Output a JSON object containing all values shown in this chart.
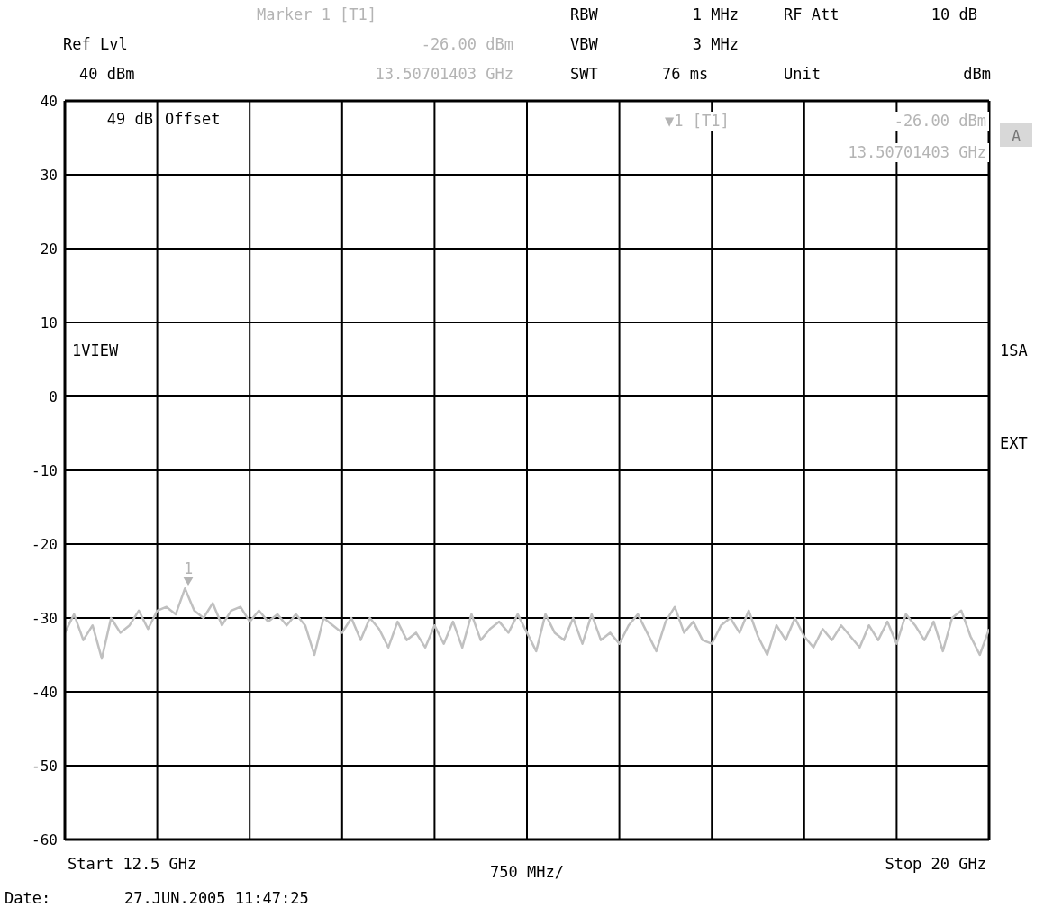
{
  "chart_data": {
    "type": "line",
    "xlabel": "750 MHz/",
    "categories": [
      null,
      null,
      null,
      null,
      null,
      null,
      null,
      null,
      null,
      null,
      null,
      null,
      null,
      null,
      null,
      null,
      null,
      null,
      null,
      null,
      null,
      null,
      null,
      null,
      null,
      null,
      null,
      null,
      null,
      null,
      null,
      null,
      null,
      null,
      null,
      null,
      null,
      null,
      null,
      null,
      null,
      null,
      null,
      null,
      null,
      null,
      null,
      null,
      null,
      null,
      null,
      null,
      null,
      null,
      null,
      null,
      null,
      null,
      null,
      null,
      null,
      null,
      null,
      null,
      null,
      null,
      null,
      null,
      null,
      null,
      null,
      null,
      null,
      null,
      null,
      null,
      null,
      null,
      null,
      null,
      null,
      null,
      null,
      null,
      null,
      null,
      null,
      null,
      null,
      null,
      null,
      null,
      null,
      null,
      null,
      null,
      null,
      null,
      null,
      null,
      null
    ],
    "series": [
      {
        "color": "#c0c0c0",
        "values": [
          -32,
          -29.5,
          -33,
          -31,
          -35.5,
          -30,
          -32,
          -31,
          -29,
          -31.5,
          -29,
          -28.5,
          -29.5,
          -26,
          -29,
          -30,
          -28,
          -31,
          -29,
          -28.5,
          -30.5,
          -29,
          -30.5,
          -29.5,
          -31,
          -29.5,
          -31,
          -35,
          -30,
          -31,
          -32,
          -30,
          -33,
          -30,
          -31.5,
          -34,
          -30.5,
          -33,
          -32,
          -34,
          -31,
          -33.5,
          -30.5,
          -34,
          -29.5,
          -33,
          -31.5,
          -30.5,
          -32,
          -29.5,
          -32,
          -34.5,
          -29.5,
          -32,
          -33,
          -30,
          -33.5,
          -29.5,
          -33,
          -32,
          -33.5,
          -31,
          -29.5,
          -32,
          -34.5,
          -30.5,
          -28.5,
          -32,
          -30.5,
          -33,
          -33.5,
          -31,
          -30,
          -32,
          -29,
          -32.5,
          -35,
          -31,
          -33,
          -30,
          -32.5,
          -34,
          -31.5,
          -33,
          -31,
          -32.5,
          -34,
          -31,
          -33,
          -30.5,
          -33.5,
          -29.5,
          -31,
          -33,
          -30.5,
          -34.5,
          -30,
          -29,
          -32.5,
          -35,
          -31.5
        ]
      }
    ],
    "ylim": [
      -60,
      40
    ],
    "yticks": [
      -60,
      -50,
      -40,
      -30,
      -20,
      -10,
      0,
      10,
      20,
      30,
      40
    ],
    "grid": true,
    "marker": "none",
    "annotations": [
      "Marker 1 [T1]",
      "Ref Lvl",
      "40 dBm",
      "-26.00 dBm",
      "13.50701403 GHz",
      "RBW",
      "1 MHz",
      "RF Att",
      "10 dB",
      "VBW",
      "3 MHz",
      "SWT",
      "76 ms",
      "Unit",
      "dBm",
      "49 dB",
      "Offset",
      "▼1 [T1]",
      "-26.00 dBm",
      "13.50701403 GHz",
      "A",
      "1VIEW",
      "1SA",
      "EXT",
      "Date:",
      "27.JUN.2005  11:47:25",
      "1",
      "Start 12.5 GHz",
      "Stop 20 GHz"
    ]
  }
}
